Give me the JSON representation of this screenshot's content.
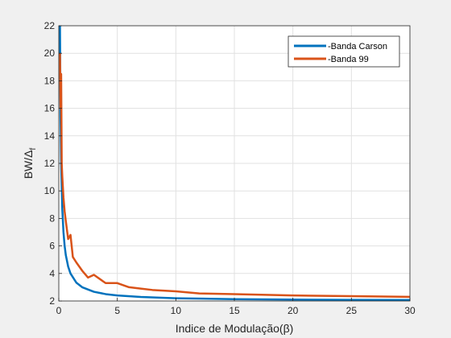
{
  "chart_data": {
    "type": "line",
    "xlabel": "Indice de Modulação(β)",
    "ylabel_main": "BW/Δ",
    "ylabel_sub": "f",
    "xlim": [
      0,
      30
    ],
    "ylim": [
      2,
      22
    ],
    "xticks": [
      0,
      5,
      10,
      15,
      20,
      25,
      30
    ],
    "yticks": [
      2,
      4,
      6,
      8,
      10,
      12,
      14,
      16,
      18,
      20,
      22
    ],
    "grid": true,
    "legend_position": "top-right",
    "series": [
      {
        "name": "-Banda Carson",
        "color": "#0072BD",
        "formula": "2*(beta+1)/beta",
        "x": [
          0.1,
          0.15,
          0.2,
          0.3,
          0.4,
          0.5,
          0.6,
          0.8,
          1,
          1.5,
          2,
          3,
          4,
          5,
          7,
          10,
          15,
          20,
          25,
          30
        ],
        "y": [
          22,
          15.33,
          12,
          8.67,
          7,
          6,
          5.33,
          4.5,
          4,
          3.33,
          3,
          2.67,
          2.5,
          2.4,
          2.29,
          2.2,
          2.13,
          2.1,
          2.08,
          2.07
        ]
      },
      {
        "name": "-Banda 99",
        "color": "#D95319",
        "x": [
          0.1,
          0.15,
          0.2,
          0.25,
          0.3,
          0.4,
          0.5,
          0.6,
          0.8,
          1,
          1.2,
          1.5,
          2,
          2.5,
          3,
          4,
          5,
          6,
          7,
          8,
          10,
          12,
          15,
          20,
          25,
          30
        ],
        "y": [
          20,
          16,
          18.5,
          12,
          11,
          9.5,
          8.5,
          7.8,
          6.5,
          6.8,
          5.2,
          4.8,
          4.2,
          3.7,
          3.9,
          3.3,
          3.3,
          3.0,
          2.9,
          2.8,
          2.7,
          2.55,
          2.5,
          2.4,
          2.35,
          2.3
        ]
      }
    ]
  }
}
